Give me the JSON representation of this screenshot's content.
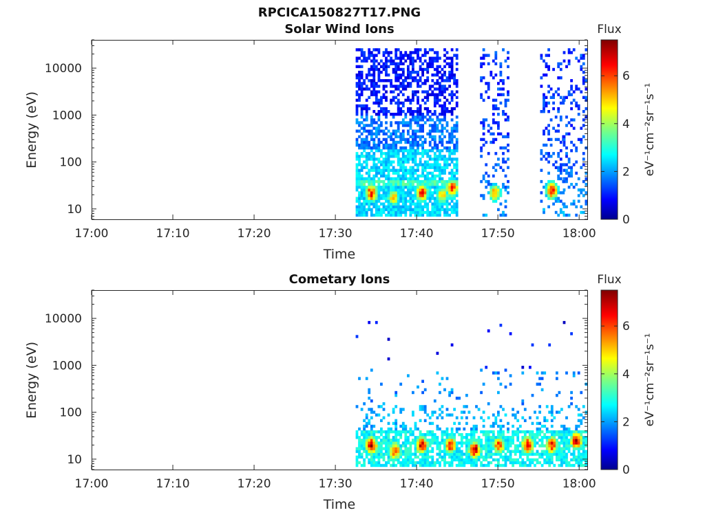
{
  "figure": {
    "title": "RPCICA150827T17.PNG"
  },
  "chart_data": [
    {
      "type": "heatmap",
      "title": "Solar Wind Ions",
      "xlabel": "Time",
      "ylabel": "Energy (eV)",
      "x_ticks": [
        "17:00",
        "17:10",
        "17:20",
        "17:30",
        "17:40",
        "17:50",
        "18:00"
      ],
      "x_tick_minutes": [
        0,
        10,
        20,
        30,
        40,
        50,
        60
      ],
      "xlim_minutes": [
        0,
        61
      ],
      "yscale": "log",
      "ylim": [
        6,
        40000
      ],
      "y_ticks": [
        "10",
        "100",
        "1000",
        "10000"
      ],
      "y_tick_values": [
        10,
        100,
        1000,
        10000
      ],
      "colorbar": {
        "label": "Flux",
        "unit": "eV⁻¹cm⁻²sr⁻¹s⁻¹",
        "ticks": [
          "0",
          "2",
          "4",
          "6"
        ],
        "tick_values": [
          0,
          2,
          4,
          6
        ],
        "range": [
          0,
          7.5
        ],
        "colormap": "jet"
      },
      "activity_intervals_minutes": [
        [
          32.5,
          44.8
        ],
        [
          47.8,
          51.2
        ],
        [
          55.2,
          57.9
        ],
        [
          58.0,
          61.0
        ]
      ],
      "hotspots": [
        {
          "t": 34.3,
          "e": 22,
          "flux": 7.0
        },
        {
          "t": 37.0,
          "e": 18,
          "flux": 5.5
        },
        {
          "t": 40.5,
          "e": 22,
          "flux": 6.8
        },
        {
          "t": 43.0,
          "e": 20,
          "flux": 5.5
        },
        {
          "t": 44.2,
          "e": 28,
          "flux": 6.8
        },
        {
          "t": 49.5,
          "e": 22,
          "flux": 5.8
        },
        {
          "t": 56.5,
          "e": 25,
          "flux": 6.8
        }
      ],
      "grid": false,
      "legend": "colorbar-right"
    },
    {
      "type": "heatmap",
      "title": "Cometary Ions",
      "xlabel": "Time",
      "ylabel": "Energy (eV)",
      "x_ticks": [
        "17:00",
        "17:10",
        "17:20",
        "17:30",
        "17:40",
        "17:50",
        "18:00"
      ],
      "x_tick_minutes": [
        0,
        10,
        20,
        30,
        40,
        50,
        60
      ],
      "xlim_minutes": [
        0,
        61
      ],
      "yscale": "log",
      "ylim": [
        6,
        40000
      ],
      "y_ticks": [
        "10",
        "100",
        "1000",
        "10000"
      ],
      "y_tick_values": [
        10,
        100,
        1000,
        10000
      ],
      "colorbar": {
        "label": "Flux",
        "unit": "eV⁻¹cm⁻²sr⁻¹s⁻¹",
        "ticks": [
          "0",
          "2",
          "4",
          "6"
        ],
        "tick_values": [
          0,
          2,
          4,
          6
        ],
        "range": [
          0,
          7.5
        ],
        "colormap": "jet"
      },
      "activity_intervals_minutes": [
        [
          32.5,
          61.0
        ]
      ],
      "hotspots": [
        {
          "t": 34.3,
          "e": 20,
          "flux": 7.5
        },
        {
          "t": 37.2,
          "e": 15,
          "flux": 6.8
        },
        {
          "t": 40.5,
          "e": 20,
          "flux": 7.2
        },
        {
          "t": 44.0,
          "e": 20,
          "flux": 6.8
        },
        {
          "t": 47.0,
          "e": 16,
          "flux": 7.5
        },
        {
          "t": 50.0,
          "e": 20,
          "flux": 6.5
        },
        {
          "t": 53.5,
          "e": 20,
          "flux": 7.2
        },
        {
          "t": 56.5,
          "e": 20,
          "flux": 6.8
        },
        {
          "t": 59.5,
          "e": 25,
          "flux": 7.5
        }
      ],
      "grid": false,
      "legend": "colorbar-right"
    }
  ]
}
